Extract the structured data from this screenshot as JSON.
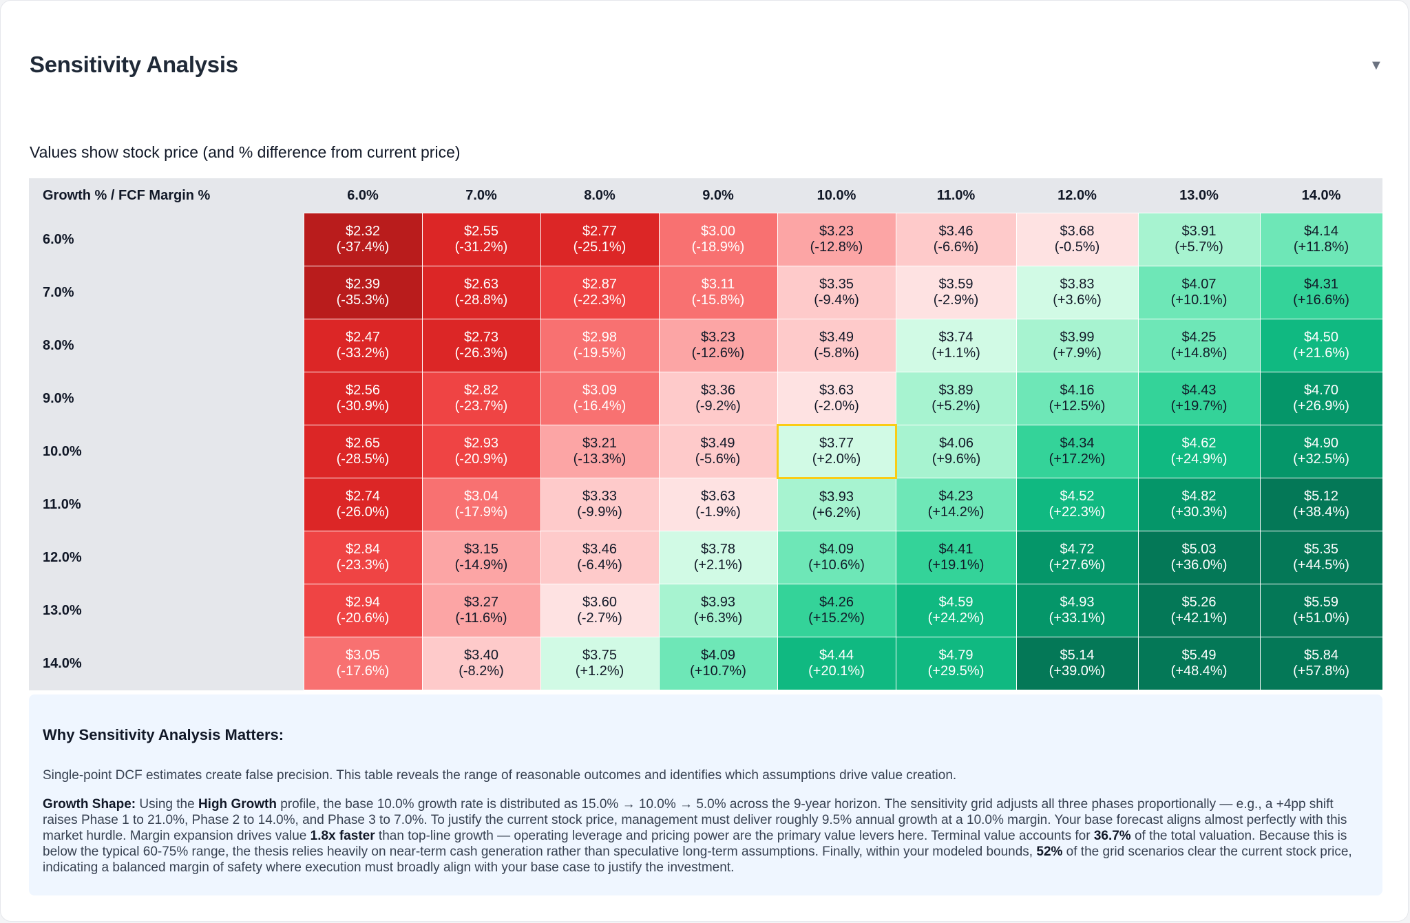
{
  "header": {
    "title": "Sensitivity Analysis",
    "toggle_glyph": "▼"
  },
  "subtitle": "Values show stock price (and % difference from current price)",
  "table": {
    "corner_label": "Growth % / FCF Margin %",
    "columns": [
      "6.0%",
      "7.0%",
      "8.0%",
      "9.0%",
      "10.0%",
      "11.0%",
      "12.0%",
      "13.0%",
      "14.0%"
    ],
    "rows": [
      {
        "label": "6.0%",
        "cells": [
          {
            "price": "$2.32",
            "diff": "(-37.4%)",
            "bg": "#b91c1c",
            "fg": "#ffffff"
          },
          {
            "price": "$2.55",
            "diff": "(-31.2%)",
            "bg": "#dc2626",
            "fg": "#ffffff"
          },
          {
            "price": "$2.77",
            "diff": "(-25.1%)",
            "bg": "#dc2626",
            "fg": "#ffffff"
          },
          {
            "price": "$3.00",
            "diff": "(-18.9%)",
            "bg": "#f87171",
            "fg": "#ffffff"
          },
          {
            "price": "$3.23",
            "diff": "(-12.8%)",
            "bg": "#fca5a5",
            "fg": "#111827"
          },
          {
            "price": "$3.46",
            "diff": "(-6.6%)",
            "bg": "#fecaca",
            "fg": "#111827"
          },
          {
            "price": "$3.68",
            "diff": "(-0.5%)",
            "bg": "#fee2e2",
            "fg": "#111827"
          },
          {
            "price": "$3.91",
            "diff": "(+5.7%)",
            "bg": "#a7f3d0",
            "fg": "#111827"
          },
          {
            "price": "$4.14",
            "diff": "(+11.8%)",
            "bg": "#6ee7b7",
            "fg": "#111827"
          }
        ]
      },
      {
        "label": "7.0%",
        "cells": [
          {
            "price": "$2.39",
            "diff": "(-35.3%)",
            "bg": "#b91c1c",
            "fg": "#ffffff"
          },
          {
            "price": "$2.63",
            "diff": "(-28.8%)",
            "bg": "#dc2626",
            "fg": "#ffffff"
          },
          {
            "price": "$2.87",
            "diff": "(-22.3%)",
            "bg": "#ef4444",
            "fg": "#ffffff"
          },
          {
            "price": "$3.11",
            "diff": "(-15.8%)",
            "bg": "#f87171",
            "fg": "#ffffff"
          },
          {
            "price": "$3.35",
            "diff": "(-9.4%)",
            "bg": "#fecaca",
            "fg": "#111827"
          },
          {
            "price": "$3.59",
            "diff": "(-2.9%)",
            "bg": "#fee2e2",
            "fg": "#111827"
          },
          {
            "price": "$3.83",
            "diff": "(+3.6%)",
            "bg": "#d1fae5",
            "fg": "#111827"
          },
          {
            "price": "$4.07",
            "diff": "(+10.1%)",
            "bg": "#6ee7b7",
            "fg": "#111827"
          },
          {
            "price": "$4.31",
            "diff": "(+16.6%)",
            "bg": "#34d399",
            "fg": "#111827"
          }
        ]
      },
      {
        "label": "8.0%",
        "cells": [
          {
            "price": "$2.47",
            "diff": "(-33.2%)",
            "bg": "#dc2626",
            "fg": "#ffffff"
          },
          {
            "price": "$2.73",
            "diff": "(-26.3%)",
            "bg": "#dc2626",
            "fg": "#ffffff"
          },
          {
            "price": "$2.98",
            "diff": "(-19.5%)",
            "bg": "#f87171",
            "fg": "#ffffff"
          },
          {
            "price": "$3.23",
            "diff": "(-12.6%)",
            "bg": "#fca5a5",
            "fg": "#111827"
          },
          {
            "price": "$3.49",
            "diff": "(-5.8%)",
            "bg": "#fecaca",
            "fg": "#111827"
          },
          {
            "price": "$3.74",
            "diff": "(+1.1%)",
            "bg": "#d1fae5",
            "fg": "#111827"
          },
          {
            "price": "$3.99",
            "diff": "(+7.9%)",
            "bg": "#a7f3d0",
            "fg": "#111827"
          },
          {
            "price": "$4.25",
            "diff": "(+14.8%)",
            "bg": "#6ee7b7",
            "fg": "#111827"
          },
          {
            "price": "$4.50",
            "diff": "(+21.6%)",
            "bg": "#10b981",
            "fg": "#ffffff"
          }
        ]
      },
      {
        "label": "9.0%",
        "cells": [
          {
            "price": "$2.56",
            "diff": "(-30.9%)",
            "bg": "#dc2626",
            "fg": "#ffffff"
          },
          {
            "price": "$2.82",
            "diff": "(-23.7%)",
            "bg": "#ef4444",
            "fg": "#ffffff"
          },
          {
            "price": "$3.09",
            "diff": "(-16.4%)",
            "bg": "#f87171",
            "fg": "#ffffff"
          },
          {
            "price": "$3.36",
            "diff": "(-9.2%)",
            "bg": "#fecaca",
            "fg": "#111827"
          },
          {
            "price": "$3.63",
            "diff": "(-2.0%)",
            "bg": "#fee2e2",
            "fg": "#111827"
          },
          {
            "price": "$3.89",
            "diff": "(+5.2%)",
            "bg": "#a7f3d0",
            "fg": "#111827"
          },
          {
            "price": "$4.16",
            "diff": "(+12.5%)",
            "bg": "#6ee7b7",
            "fg": "#111827"
          },
          {
            "price": "$4.43",
            "diff": "(+19.7%)",
            "bg": "#34d399",
            "fg": "#111827"
          },
          {
            "price": "$4.70",
            "diff": "(+26.9%)",
            "bg": "#059669",
            "fg": "#ffffff"
          }
        ]
      },
      {
        "label": "10.0%",
        "cells": [
          {
            "price": "$2.65",
            "diff": "(-28.5%)",
            "bg": "#dc2626",
            "fg": "#ffffff"
          },
          {
            "price": "$2.93",
            "diff": "(-20.9%)",
            "bg": "#ef4444",
            "fg": "#ffffff"
          },
          {
            "price": "$3.21",
            "diff": "(-13.3%)",
            "bg": "#fca5a5",
            "fg": "#111827"
          },
          {
            "price": "$3.49",
            "diff": "(-5.6%)",
            "bg": "#fecaca",
            "fg": "#111827"
          },
          {
            "price": "$3.77",
            "diff": "(+2.0%)",
            "bg": "#d1fae5",
            "fg": "#111827",
            "current": true
          },
          {
            "price": "$4.06",
            "diff": "(+9.6%)",
            "bg": "#a7f3d0",
            "fg": "#111827"
          },
          {
            "price": "$4.34",
            "diff": "(+17.2%)",
            "bg": "#34d399",
            "fg": "#111827"
          },
          {
            "price": "$4.62",
            "diff": "(+24.9%)",
            "bg": "#10b981",
            "fg": "#ffffff"
          },
          {
            "price": "$4.90",
            "diff": "(+32.5%)",
            "bg": "#059669",
            "fg": "#ffffff"
          }
        ]
      },
      {
        "label": "11.0%",
        "cells": [
          {
            "price": "$2.74",
            "diff": "(-26.0%)",
            "bg": "#dc2626",
            "fg": "#ffffff"
          },
          {
            "price": "$3.04",
            "diff": "(-17.9%)",
            "bg": "#f87171",
            "fg": "#ffffff"
          },
          {
            "price": "$3.33",
            "diff": "(-9.9%)",
            "bg": "#fecaca",
            "fg": "#111827"
          },
          {
            "price": "$3.63",
            "diff": "(-1.9%)",
            "bg": "#fee2e2",
            "fg": "#111827"
          },
          {
            "price": "$3.93",
            "diff": "(+6.2%)",
            "bg": "#a7f3d0",
            "fg": "#111827"
          },
          {
            "price": "$4.23",
            "diff": "(+14.2%)",
            "bg": "#6ee7b7",
            "fg": "#111827"
          },
          {
            "price": "$4.52",
            "diff": "(+22.3%)",
            "bg": "#10b981",
            "fg": "#ffffff"
          },
          {
            "price": "$4.82",
            "diff": "(+30.3%)",
            "bg": "#059669",
            "fg": "#ffffff"
          },
          {
            "price": "$5.12",
            "diff": "(+38.4%)",
            "bg": "#047857",
            "fg": "#ffffff"
          }
        ]
      },
      {
        "label": "12.0%",
        "cells": [
          {
            "price": "$2.84",
            "diff": "(-23.3%)",
            "bg": "#ef4444",
            "fg": "#ffffff"
          },
          {
            "price": "$3.15",
            "diff": "(-14.9%)",
            "bg": "#fca5a5",
            "fg": "#111827"
          },
          {
            "price": "$3.46",
            "diff": "(-6.4%)",
            "bg": "#fecaca",
            "fg": "#111827"
          },
          {
            "price": "$3.78",
            "diff": "(+2.1%)",
            "bg": "#d1fae5",
            "fg": "#111827"
          },
          {
            "price": "$4.09",
            "diff": "(+10.6%)",
            "bg": "#6ee7b7",
            "fg": "#111827"
          },
          {
            "price": "$4.41",
            "diff": "(+19.1%)",
            "bg": "#34d399",
            "fg": "#111827"
          },
          {
            "price": "$4.72",
            "diff": "(+27.6%)",
            "bg": "#059669",
            "fg": "#ffffff"
          },
          {
            "price": "$5.03",
            "diff": "(+36.0%)",
            "bg": "#047857",
            "fg": "#ffffff"
          },
          {
            "price": "$5.35",
            "diff": "(+44.5%)",
            "bg": "#047857",
            "fg": "#ffffff"
          }
        ]
      },
      {
        "label": "13.0%",
        "cells": [
          {
            "price": "$2.94",
            "diff": "(-20.6%)",
            "bg": "#ef4444",
            "fg": "#ffffff"
          },
          {
            "price": "$3.27",
            "diff": "(-11.6%)",
            "bg": "#fca5a5",
            "fg": "#111827"
          },
          {
            "price": "$3.60",
            "diff": "(-2.7%)",
            "bg": "#fee2e2",
            "fg": "#111827"
          },
          {
            "price": "$3.93",
            "diff": "(+6.3%)",
            "bg": "#a7f3d0",
            "fg": "#111827"
          },
          {
            "price": "$4.26",
            "diff": "(+15.2%)",
            "bg": "#34d399",
            "fg": "#111827"
          },
          {
            "price": "$4.59",
            "diff": "(+24.2%)",
            "bg": "#10b981",
            "fg": "#ffffff"
          },
          {
            "price": "$4.93",
            "diff": "(+33.1%)",
            "bg": "#059669",
            "fg": "#ffffff"
          },
          {
            "price": "$5.26",
            "diff": "(+42.1%)",
            "bg": "#047857",
            "fg": "#ffffff"
          },
          {
            "price": "$5.59",
            "diff": "(+51.0%)",
            "bg": "#047857",
            "fg": "#ffffff"
          }
        ]
      },
      {
        "label": "14.0%",
        "cells": [
          {
            "price": "$3.05",
            "diff": "(-17.6%)",
            "bg": "#f87171",
            "fg": "#ffffff"
          },
          {
            "price": "$3.40",
            "diff": "(-8.2%)",
            "bg": "#fecaca",
            "fg": "#111827"
          },
          {
            "price": "$3.75",
            "diff": "(+1.2%)",
            "bg": "#d1fae5",
            "fg": "#111827"
          },
          {
            "price": "$4.09",
            "diff": "(+10.7%)",
            "bg": "#6ee7b7",
            "fg": "#111827"
          },
          {
            "price": "$4.44",
            "diff": "(+20.1%)",
            "bg": "#10b981",
            "fg": "#ffffff"
          },
          {
            "price": "$4.79",
            "diff": "(+29.5%)",
            "bg": "#10b981",
            "fg": "#ffffff"
          },
          {
            "price": "$5.14",
            "diff": "(+39.0%)",
            "bg": "#047857",
            "fg": "#ffffff"
          },
          {
            "price": "$5.49",
            "diff": "(+48.4%)",
            "bg": "#047857",
            "fg": "#ffffff"
          },
          {
            "price": "$5.84",
            "diff": "(+57.8%)",
            "bg": "#047857",
            "fg": "#ffffff"
          }
        ]
      }
    ]
  },
  "info": {
    "heading": "Why Sensitivity Analysis Matters:",
    "intro": "Single-point DCF estimates create false precision. This table reveals the range of reasonable outcomes and identifies which assumptions drive value creation.",
    "growth_shape": {
      "label": "Growth Shape:",
      "t1": " Using the ",
      "profile": "High Growth",
      "t2": " profile, the base 10.0% growth rate is distributed as 15.0% → 10.0% → 5.0% across the 9-year horizon. The sensitivity grid adjusts all three phases proportionally — e.g., a +4pp shift raises Phase 1 to 21.0%, Phase 2 to 14.0%, and Phase 3 to 7.0%. To justify the current stock price, management must deliver roughly 9.5% annual growth at a 10.0% margin. Your base forecast aligns almost perfectly with this market hurdle. Margin expansion drives value ",
      "margin_multiple": "1.8x faster",
      "t3": " than top-line growth — operating leverage and pricing power are the primary value levers here. Terminal value accounts for ",
      "terminal_pct": "36.7%",
      "t4": " of the total valuation. Because this is below the typical 60-75% range, the thesis relies heavily on near-term cash generation rather than speculative long-term assumptions. Finally, within your modeled bounds, ",
      "clear_pct": "52%",
      "t5": " of the grid scenarios clear the current stock price, indicating a balanced margin of safety where execution must broadly align with your base case to justify the investment."
    }
  },
  "colors": {
    "current_cell_border": "#facc15",
    "header_bg": "#e5e7eb",
    "info_bg": "#eff6ff"
  }
}
